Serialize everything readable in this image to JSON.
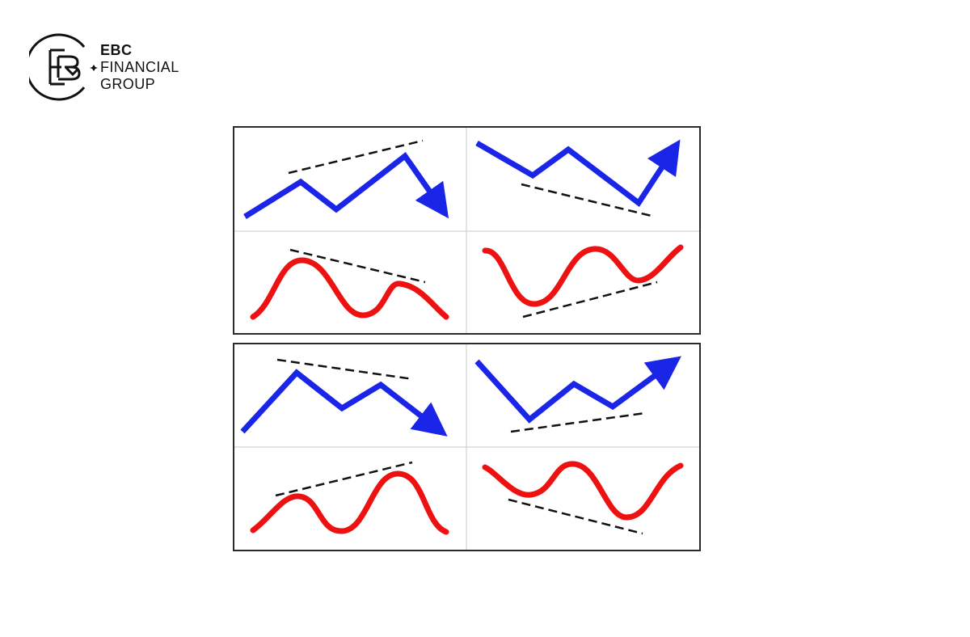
{
  "brand": {
    "line1": "EBC",
    "line2": "FINANCIAL",
    "line3": "GROUP"
  },
  "colors": {
    "price_line": "#1b25e8",
    "oscillator_line": "#ee1111",
    "trendline": "#111111",
    "frame": "#2a2a2a",
    "divider": "#c8c8c8"
  },
  "icons": {
    "logo": "ebc-monogram-icon",
    "arrow": "arrow-head-icon"
  }
}
